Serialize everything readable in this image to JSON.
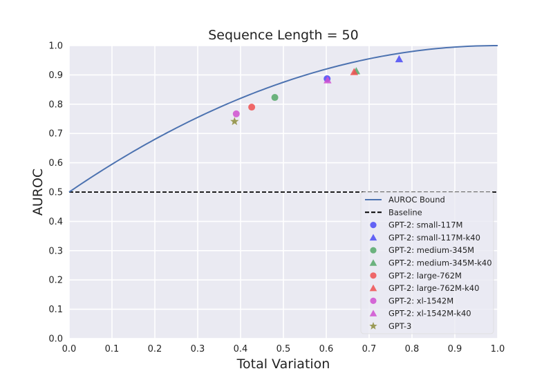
{
  "chart_data": {
    "type": "scatter",
    "title": "Sequence Length = 50",
    "xlabel": "Total Variation",
    "ylabel": "AUROC",
    "xlim": [
      0.0,
      1.0
    ],
    "ylim": [
      0.0,
      1.0
    ],
    "xticks": [
      "0.0",
      "0.1",
      "0.2",
      "0.3",
      "0.4",
      "0.5",
      "0.6",
      "0.7",
      "0.8",
      "0.9",
      "1.0"
    ],
    "yticks": [
      "0.0",
      "0.1",
      "0.2",
      "0.3",
      "0.4",
      "0.5",
      "0.6",
      "0.7",
      "0.8",
      "0.9",
      "1.0"
    ],
    "grid": true,
    "legend_position": "lower-right",
    "bound_curve": {
      "name": "AUROC Bound",
      "formula": "0.5 + tv - tv^2/2",
      "color": "#4C72B0"
    },
    "baseline": {
      "name": "Baseline",
      "y": 0.5,
      "color": "#000000"
    },
    "series": [
      {
        "name": "GPT-2: small-117M",
        "marker": "circle",
        "color": "#4A4AF4",
        "x": 0.602,
        "y": 0.887
      },
      {
        "name": "GPT-2: small-117M-k40",
        "marker": "triangle",
        "color": "#4A4AF4",
        "x": 0.77,
        "y": 0.954
      },
      {
        "name": "GPT-2: medium-345M",
        "marker": "circle",
        "color": "#55A868",
        "x": 0.48,
        "y": 0.823
      },
      {
        "name": "GPT-2: medium-345M-k40",
        "marker": "triangle",
        "color": "#55A868",
        "x": 0.67,
        "y": 0.913
      },
      {
        "name": "GPT-2: large-762M",
        "marker": "circle",
        "color": "#F05050",
        "x": 0.426,
        "y": 0.79
      },
      {
        "name": "GPT-2: large-762M-k40",
        "marker": "triangle",
        "color": "#F05050",
        "x": 0.665,
        "y": 0.91
      },
      {
        "name": "GPT-2: xl-1542M",
        "marker": "circle",
        "color": "#D050D0",
        "x": 0.39,
        "y": 0.767
      },
      {
        "name": "GPT-2: xl-1542M-k40",
        "marker": "triangle",
        "color": "#D050D0",
        "x": 0.603,
        "y": 0.882
      },
      {
        "name": "GPT-3",
        "marker": "star",
        "color": "#8C8C3A",
        "x": 0.386,
        "y": 0.741
      }
    ]
  }
}
